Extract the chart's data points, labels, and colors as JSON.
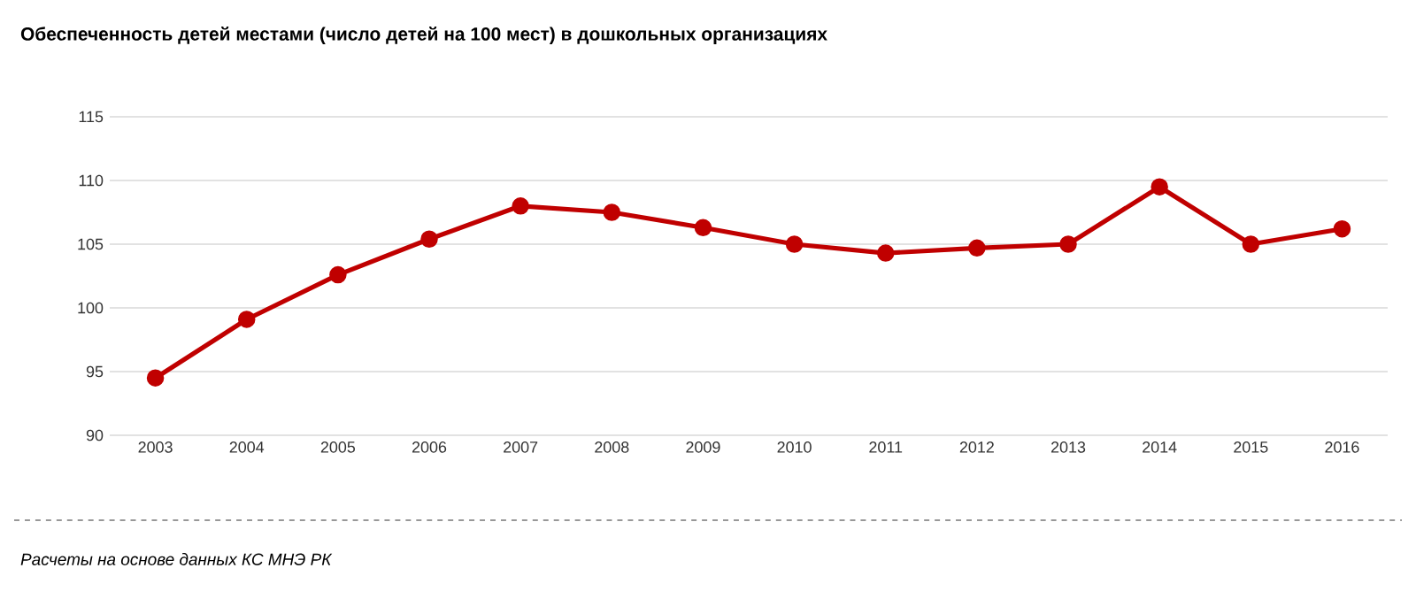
{
  "chart_data": {
    "type": "line",
    "title": "Обеспеченность детей местами (число детей на 100 мест) в дошкольных организациях",
    "categories": [
      "2003",
      "2004",
      "2005",
      "2006",
      "2007",
      "2008",
      "2009",
      "2010",
      "2011",
      "2012",
      "2013",
      "2014",
      "2015",
      "2016"
    ],
    "series": [
      {
        "color": "#c00000",
        "values": [
          94.5,
          99.1,
          102.6,
          105.4,
          108.0,
          107.5,
          106.3,
          105.0,
          104.3,
          104.7,
          105.0,
          109.5,
          105.0,
          106.2
        ]
      }
    ],
    "ylim": [
      90,
      115
    ],
    "yticks": [
      90,
      95,
      100,
      105,
      110,
      115
    ],
    "grid": "y",
    "marker": "circle",
    "line_style": "solid",
    "annotations": [
      "Расчеты на основе данных КС МНЭ РК"
    ]
  }
}
